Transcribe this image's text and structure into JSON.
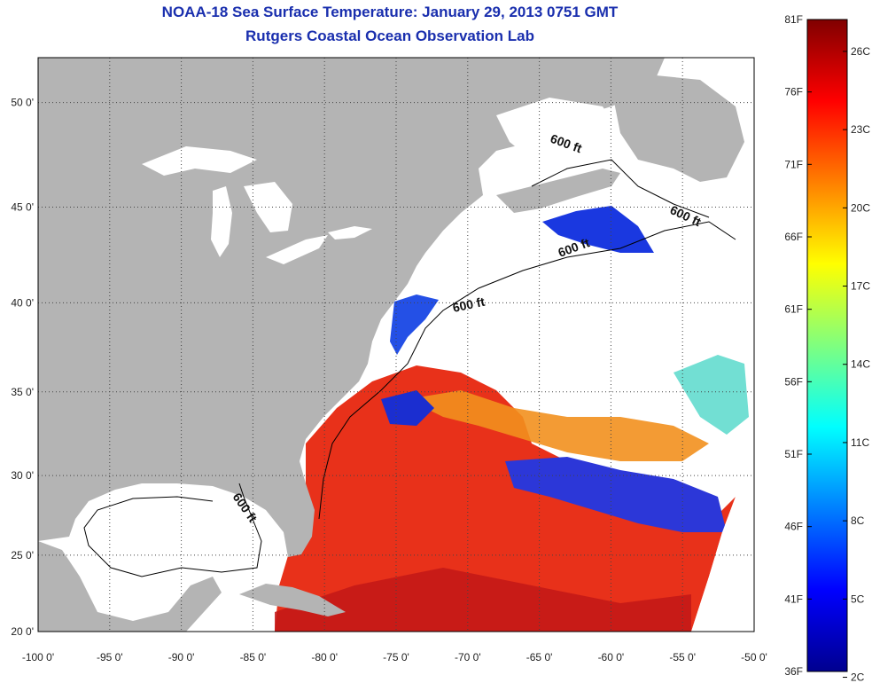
{
  "title": {
    "line1": "NOAA-18 Sea Surface Temperature:  January 29, 2013 0751 GMT",
    "line2": "Rutgers Coastal Ocean Observation Lab"
  },
  "map": {
    "lon_range": [
      -100,
      -50
    ],
    "lat_range": [
      20,
      52
    ],
    "lon_ticks": [
      "-100 0'",
      "-95 0'",
      "-90 0'",
      "-85 0'",
      "-80 0'",
      "-75 0'",
      "-70 0'",
      "-65 0'",
      "-60 0'",
      "-55 0'",
      "-50 0'"
    ],
    "lat_ticks": [
      "20 0'",
      "25 0'",
      "30 0'",
      "35 0'",
      "40 0'",
      "45 0'",
      "50 0'"
    ],
    "grid": "dotted",
    "land_color": "#b4b4b4",
    "cloud_color": "#ffffff",
    "depth_contour_label": "600 ft"
  },
  "colorbar": {
    "placement": "right",
    "range_f": [
      36,
      81
    ],
    "range_c": [
      2,
      27
    ],
    "f_labels": [
      "81F",
      "76F",
      "71F",
      "66F",
      "61F",
      "56F",
      "51F",
      "46F",
      "41F",
      "36F"
    ],
    "c_labels": [
      "26C",
      "23C",
      "20C",
      "17C",
      "14C",
      "11C",
      "8C",
      "5C",
      "2C"
    ],
    "colormap": "jet"
  }
}
